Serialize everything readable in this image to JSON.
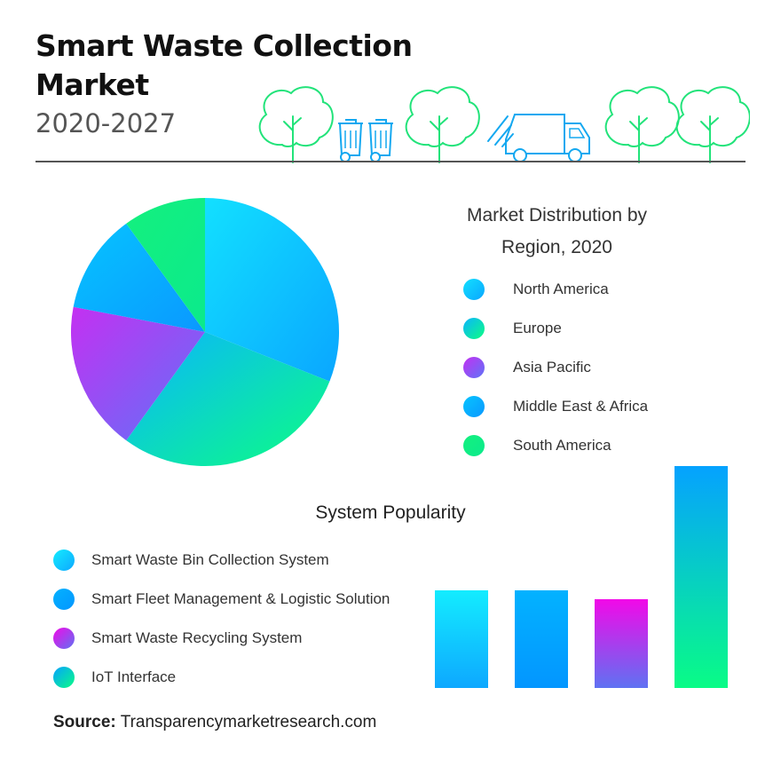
{
  "header": {
    "title": "Smart Waste Collection Market",
    "subtitle": "2020-2027",
    "illustration_icons": [
      "tree-icon",
      "waste-bin-icon",
      "tree-icon",
      "garbage-truck-icon",
      "tree-icon",
      "tree-icon"
    ],
    "accent_color": "#22e37a"
  },
  "chart_data": [
    {
      "type": "pie",
      "title": "Market Distribution by Region, 2020",
      "categories": [
        "North America",
        "Europe",
        "Asia Pacific",
        "Middle East & Africa",
        "South America"
      ],
      "values": [
        31,
        29,
        18,
        12,
        10
      ],
      "value_unit": "%",
      "start": "12 o'clock, clockwise",
      "legend_placement": "right",
      "colors": {
        "North America": [
          "#12e0ff",
          "#0aa6ff"
        ],
        "Europe": [
          "#0ab4ff",
          "#0dfe82"
        ],
        "Asia Pacific": [
          "#c430f2",
          "#5e74f7"
        ],
        "Middle East & Africa": [
          "#06c4ff",
          "#0a98ff"
        ],
        "South America": [
          "#14f07e",
          "#0bea8c"
        ]
      }
    },
    {
      "type": "bar",
      "title": "System Popularity",
      "categories": [
        "Smart Waste Bin Collection System",
        "Smart Fleet Management & Logistic Solution",
        "Smart Waste Recycling System",
        "IoT Interface"
      ],
      "values": [
        22,
        22,
        20,
        50
      ],
      "ylim": [
        0,
        50
      ],
      "xlabel": "",
      "ylabel": "",
      "grid": false,
      "legend_placement": "left",
      "colors": {
        "Smart Waste Bin Collection System": [
          "#13ecff",
          "#0ea8ff"
        ],
        "Smart Fleet Management & Logistic Solution": [
          "#03b2ff",
          "#0396ff"
        ],
        "Smart Waste Recycling System": [
          "#f209e8",
          "#5f72f2"
        ],
        "IoT Interface": [
          "#05a2ff",
          "#09fc86"
        ]
      }
    }
  ],
  "legend_region": [
    {
      "label": "North America"
    },
    {
      "label": "Europe"
    },
    {
      "label": "Asia Pacific"
    },
    {
      "label": "Middle East & Africa"
    },
    {
      "label": "South America"
    }
  ],
  "legend_system": [
    {
      "label": "Smart Waste Bin Collection System"
    },
    {
      "label": "Smart Fleet Management & Logistic Solution"
    },
    {
      "label": "Smart Waste Recycling System"
    },
    {
      "label": "IoT Interface"
    }
  ],
  "footer": {
    "source_label": "Source:",
    "source_text": "Transparencymarketresearch.com"
  }
}
